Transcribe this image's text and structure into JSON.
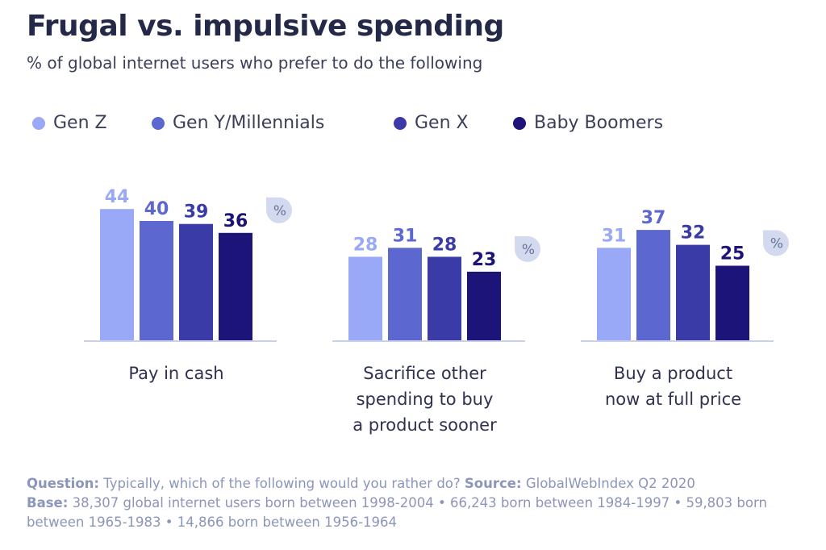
{
  "chart_data": {
    "type": "bar",
    "title": "Frugal vs. impulsive spending",
    "subtitle": "% of global internet users who prefer to do the following",
    "categories": [
      "Pay in cash",
      "Sacrifice other spending to buy a product sooner",
      "Buy a product now at full price"
    ],
    "category_lines": [
      [
        "Pay in cash"
      ],
      [
        "Sacrifice other",
        "spending to buy",
        "a product sooner"
      ],
      [
        "Buy a product",
        "now at full price"
      ]
    ],
    "series": [
      {
        "name": "Gen Z",
        "color": "#9aa8f8",
        "values": [
          44,
          28,
          31
        ]
      },
      {
        "name": "Gen Y/Millennials",
        "color": "#5c68d0",
        "values": [
          40,
          31,
          37
        ]
      },
      {
        "name": "Gen X",
        "color": "#3a3ba6",
        "values": [
          39,
          28,
          32
        ]
      },
      {
        "name": "Baby Boomers",
        "color": "#1c1478",
        "values": [
          36,
          23,
          25
        ]
      }
    ],
    "unit_badge": "%",
    "ylim": [
      0,
      50
    ],
    "grid": false,
    "legend_placement": "top-left"
  },
  "footer": {
    "question_label": "Question:",
    "question_text": " Typically, which of the following would you rather do? ",
    "source_label": "Source:",
    "source_text": " GlobalWebIndex Q2 2020",
    "base_label": "Base:",
    "base_text": " 38,307 global internet users born between 1998-2004 • 66,243 born between 1984-1997 • 59,803 born between 1965-1983 • 14,866 born between 1956-1964"
  }
}
